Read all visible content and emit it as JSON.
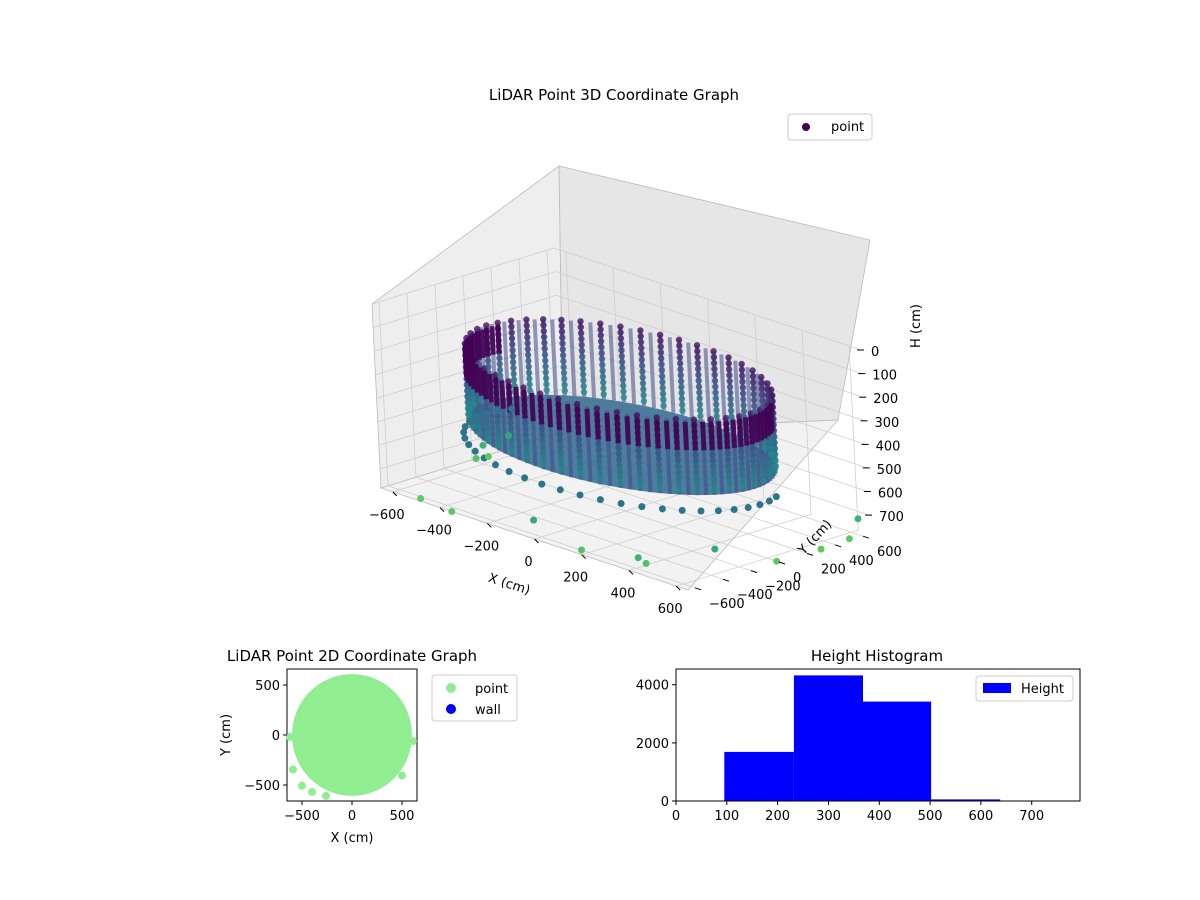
{
  "chart_data": [
    {
      "type": "scatter3d",
      "title": "LiDAR Point 3D Coordinate Graph",
      "xlabel": "X (cm)",
      "ylabel": "Y (cm)",
      "zlabel": "H (cm)",
      "xlim": [
        -650,
        650
      ],
      "ylim": [
        -650,
        650
      ],
      "zlim": [
        780,
        0
      ],
      "xticks": [
        "−600",
        "−400",
        "−200",
        "0",
        "200",
        "400",
        "600"
      ],
      "yticks": [
        "−600",
        "−400",
        "−200",
        "0",
        "200",
        "400",
        "600"
      ],
      "zticks": [
        "0",
        "100",
        "200",
        "300",
        "400",
        "500",
        "600",
        "700"
      ],
      "legend": {
        "label": "point",
        "placement": "top-right"
      },
      "colormap": "viridis",
      "grid": true,
      "surface": {
        "shape": "cylinder-wall",
        "radius": 560,
        "h_top": 180,
        "h_bottom": 500
      },
      "outliers": [
        {
          "x": -640,
          "y": 100,
          "h": 780
        },
        {
          "x": -630,
          "y": 50,
          "h": 720
        },
        {
          "x": -620,
          "y": -20,
          "h": 760
        },
        {
          "x": -610,
          "y": 200,
          "h": 700
        },
        {
          "x": -500,
          "y": -620,
          "h": 780
        },
        {
          "x": -350,
          "y": -650,
          "h": 780
        },
        {
          "x": 0,
          "y": -650,
          "h": 700
        },
        {
          "x": 200,
          "y": -650,
          "h": 760
        },
        {
          "x": 420,
          "y": -560,
          "h": 760
        },
        {
          "x": 560,
          "y": -300,
          "h": 700
        },
        {
          "x": 640,
          "y": 0,
          "h": 780
        },
        {
          "x": 650,
          "y": 300,
          "h": 780
        },
        {
          "x": 640,
          "y": 520,
          "h": 780
        },
        {
          "x": 620,
          "y": 620,
          "h": 720
        },
        {
          "x": 430,
          "y": -630,
          "h": 720
        }
      ]
    },
    {
      "type": "scatter",
      "title": "LiDAR Point 2D Coordinate Graph",
      "xlabel": "X (cm)",
      "ylabel": "Y (cm)",
      "xlim": [
        -650,
        650
      ],
      "ylim": [
        -650,
        650
      ],
      "xticks": [
        "−500",
        "0",
        "500"
      ],
      "yticks": [
        "500",
        "0",
        "−500"
      ],
      "series": [
        {
          "name": "point",
          "color": "#90ee90"
        },
        {
          "name": "wall",
          "color": "#0000ff"
        }
      ],
      "circle": {
        "cx": 0,
        "cy": 0,
        "r": 600
      },
      "outliers": [
        {
          "x": -590,
          "y": -340
        },
        {
          "x": -500,
          "y": -500
        },
        {
          "x": -400,
          "y": -560
        },
        {
          "x": -260,
          "y": -600
        },
        {
          "x": 500,
          "y": -400
        },
        {
          "x": -620,
          "y": -20
        },
        {
          "x": 610,
          "y": -60
        }
      ],
      "legend_placement": "outside-right"
    },
    {
      "type": "bar",
      "title": "Height Histogram",
      "xlabel": "",
      "ylabel": "",
      "bins": [
        {
          "x0": 95,
          "x1": 232,
          "value": 1690
        },
        {
          "x0": 232,
          "x1": 368,
          "value": 4320
        },
        {
          "x0": 368,
          "x1": 502,
          "value": 3420
        },
        {
          "x0": 502,
          "x1": 638,
          "value": 55
        }
      ],
      "xlim": [
        0,
        795
      ],
      "ylim": [
        0,
        4540
      ],
      "xticks": [
        "0",
        "100",
        "200",
        "300",
        "400",
        "500",
        "600",
        "700"
      ],
      "yticks": [
        "0",
        "2000",
        "4000"
      ],
      "legend": {
        "label": "Height",
        "placement": "top-right"
      },
      "color": "#0000ff"
    }
  ]
}
